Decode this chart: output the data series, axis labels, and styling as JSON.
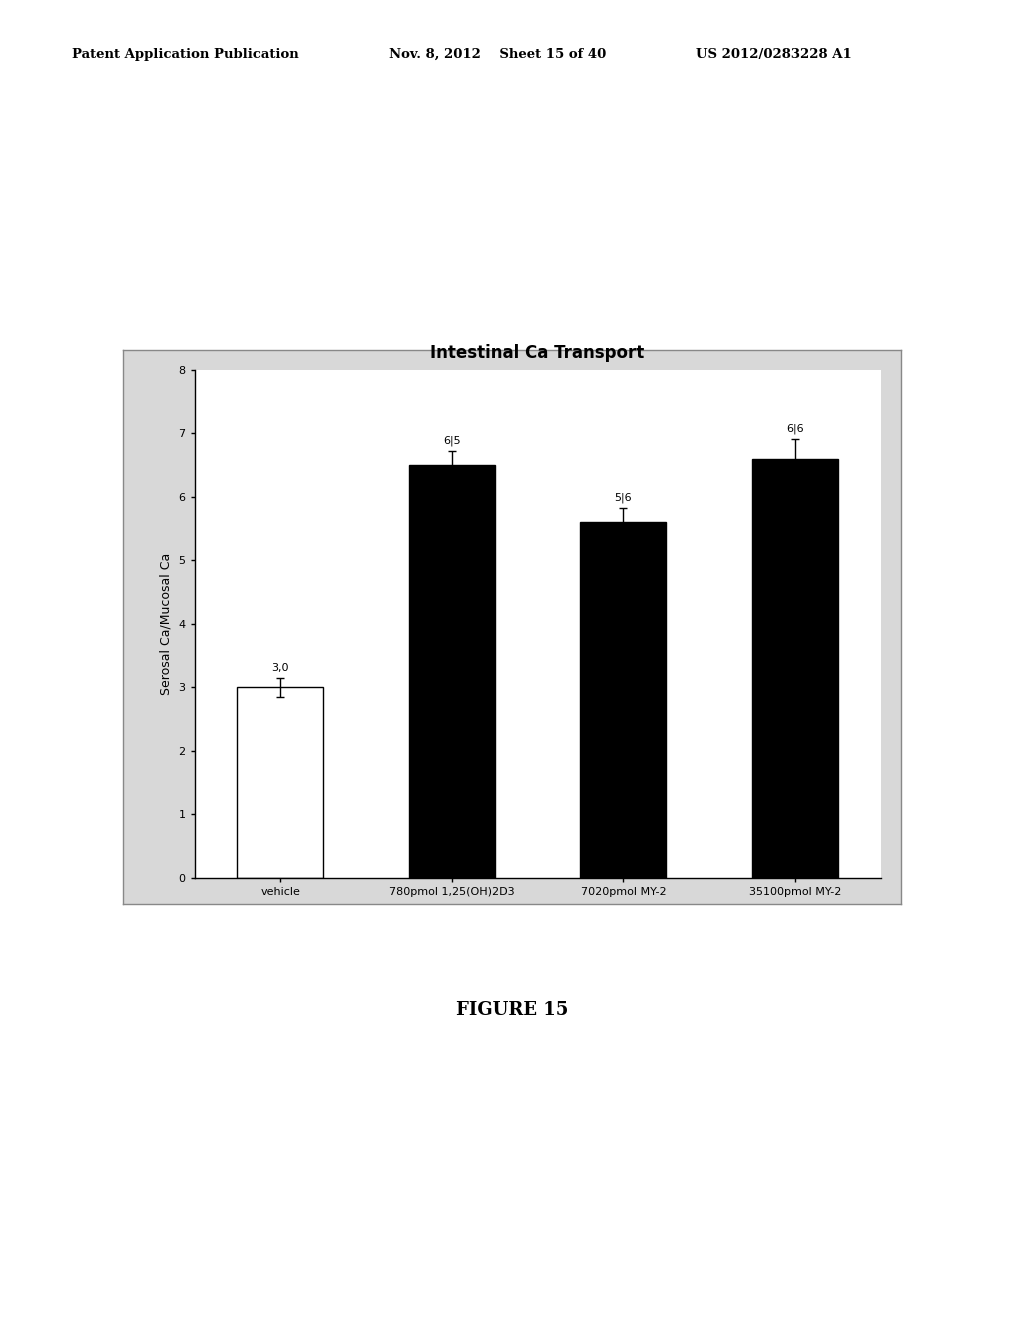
{
  "title": "Intestinal Ca Transport",
  "ylabel": "Serosal Ca/Mucosal Ca",
  "categories": [
    "vehicle",
    "780pmol 1,25(OH)2D3",
    "7020pmol MY-2",
    "35100pmol MY-2"
  ],
  "values": [
    3.0,
    6.5,
    5.6,
    6.6
  ],
  "errors": [
    0.15,
    0.22,
    0.22,
    0.3
  ],
  "labels": [
    "3,0",
    "6|5",
    "5|6",
    "6|6"
  ],
  "bar_colors": [
    "white",
    "black",
    "black",
    "black"
  ],
  "bar_edge_colors": [
    "black",
    "black",
    "black",
    "black"
  ],
  "ylim": [
    0,
    8
  ],
  "yticks": [
    0,
    1,
    2,
    3,
    4,
    5,
    6,
    7,
    8
  ],
  "title_fontsize": 12,
  "label_fontsize": 9,
  "tick_fontsize": 8,
  "figure_caption": "FIGURE 15",
  "header_left": "Patent Application Publication",
  "header_mid": "Nov. 8, 2012    Sheet 15 of 40",
  "header_right": "US 2012/0283228 A1",
  "bg_color": "white",
  "chart_bg": "white",
  "box_bg": "#d8d8d8"
}
